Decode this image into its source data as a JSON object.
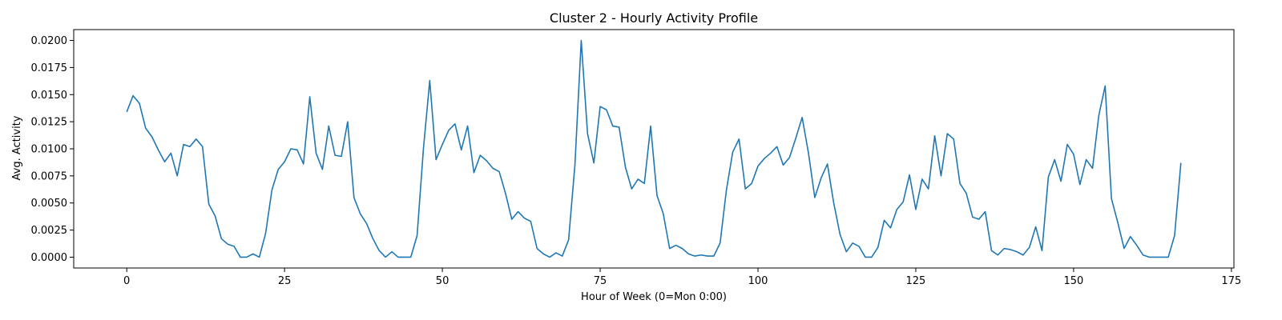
{
  "chart_data": {
    "type": "line",
    "title": "Cluster 2 - Hourly Activity Profile",
    "xlabel": "Hour of Week (0=Mon 0:00)",
    "ylabel": "Avg. Activity",
    "xlim": [
      -8.4,
      175.4
    ],
    "ylim": [
      -0.001,
      0.021
    ],
    "xticks": [
      0,
      25,
      50,
      75,
      100,
      125,
      150,
      175
    ],
    "xtick_labels": [
      "0",
      "25",
      "50",
      "75",
      "100",
      "125",
      "150",
      "175"
    ],
    "yticks": [
      0.0,
      0.0025,
      0.005,
      0.0075,
      0.01,
      0.0125,
      0.015,
      0.0175,
      0.02
    ],
    "ytick_labels": [
      "0.0000",
      "0.0025",
      "0.0050",
      "0.0075",
      "0.0100",
      "0.0125",
      "0.0150",
      "0.0175",
      "0.0200"
    ],
    "grid": false,
    "color": "#1f77b4",
    "series": [
      {
        "name": "",
        "y": [
          0.0134,
          0.0149,
          0.0142,
          0.0119,
          0.0111,
          0.0099,
          0.0088,
          0.0096,
          0.0075,
          0.0104,
          0.0102,
          0.0109,
          0.0102,
          0.0049,
          0.0038,
          0.0017,
          0.0012,
          0.001,
          0.0,
          0.0,
          0.0003,
          0.0,
          0.0022,
          0.0062,
          0.0081,
          0.0088,
          0.01,
          0.0099,
          0.0086,
          0.0148,
          0.0096,
          0.0081,
          0.0121,
          0.0094,
          0.0093,
          0.0125,
          0.0055,
          0.004,
          0.0031,
          0.0017,
          0.0006,
          0.0,
          0.0005,
          0.0,
          0.0,
          0.0,
          0.002,
          0.01,
          0.0163,
          0.009,
          0.0104,
          0.0117,
          0.0123,
          0.0099,
          0.0121,
          0.0078,
          0.0094,
          0.0089,
          0.0082,
          0.0079,
          0.0059,
          0.0035,
          0.0042,
          0.0036,
          0.0033,
          0.0008,
          0.0003,
          0.0,
          0.0004,
          0.0001,
          0.0016,
          0.0085,
          0.02,
          0.0114,
          0.0087,
          0.0139,
          0.0136,
          0.0121,
          0.012,
          0.0083,
          0.0063,
          0.0072,
          0.0068,
          0.0121,
          0.0057,
          0.004,
          0.0008,
          0.0011,
          0.0008,
          0.0003,
          0.0001,
          0.0002,
          0.0001,
          0.0001,
          0.0013,
          0.0062,
          0.0097,
          0.0109,
          0.0063,
          0.0068,
          0.0084,
          0.0091,
          0.0096,
          0.0102,
          0.0085,
          0.0092,
          0.011,
          0.0129,
          0.0096,
          0.0055,
          0.0073,
          0.0086,
          0.005,
          0.0021,
          0.0005,
          0.0013,
          0.001,
          0.0,
          0.0,
          0.0009,
          0.0034,
          0.0027,
          0.0044,
          0.0051,
          0.0076,
          0.0044,
          0.0072,
          0.0063,
          0.0112,
          0.0075,
          0.0114,
          0.0109,
          0.0068,
          0.0059,
          0.0037,
          0.0035,
          0.0042,
          0.0006,
          0.0002,
          0.0008,
          0.0007,
          0.0005,
          0.0002,
          0.0009,
          0.0028,
          0.0006,
          0.0074,
          0.009,
          0.007,
          0.0104,
          0.0095,
          0.0067,
          0.009,
          0.0082,
          0.0131,
          0.0158,
          0.0054,
          0.0032,
          0.0008,
          0.0019,
          0.0011,
          0.0002,
          0.0,
          0.0,
          0.0,
          0.0,
          0.002,
          0.0087
        ]
      }
    ]
  }
}
